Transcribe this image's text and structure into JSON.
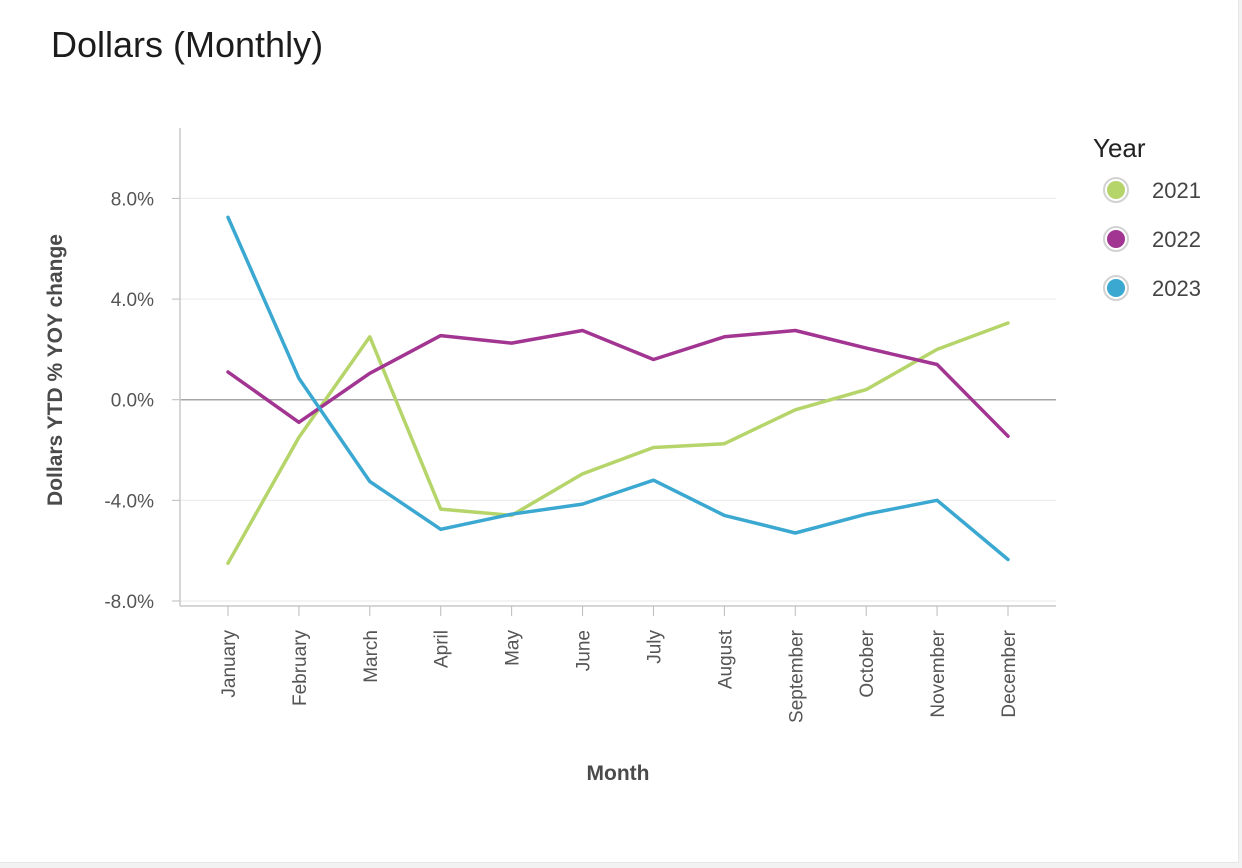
{
  "title": "Dollars (Monthly)",
  "chart_data": {
    "type": "line",
    "title": "Dollars (Monthly)",
    "xlabel": "Month",
    "ylabel": "Dollars YTD % YOY change",
    "categories": [
      "January",
      "February",
      "March",
      "April",
      "May",
      "June",
      "July",
      "August",
      "September",
      "October",
      "November",
      "December"
    ],
    "yticks": [
      8,
      4,
      0,
      -4,
      -8
    ],
    "ytick_labels": [
      "8.0%",
      "4.0%",
      "0.0%",
      "-4.0%",
      "-8.0%"
    ],
    "ylim": [
      -8.2,
      10.8
    ],
    "grid": true,
    "legend": {
      "title": "Year",
      "position": "right"
    },
    "series": [
      {
        "name": "2021",
        "color": "#b5d56a",
        "values": [
          -6.5,
          -1.5,
          2.5,
          -4.35,
          -4.6,
          -2.95,
          -1.9,
          -1.75,
          -0.4,
          0.4,
          2.0,
          3.05
        ]
      },
      {
        "name": "2022",
        "color": "#a23592",
        "values": [
          1.1,
          -0.9,
          1.05,
          2.55,
          2.25,
          2.75,
          1.6,
          2.5,
          2.75,
          2.05,
          1.4,
          -1.45
        ]
      },
      {
        "name": "2023",
        "color": "#3aa8d0",
        "values": [
          7.25,
          0.85,
          -3.25,
          -5.15,
          -4.55,
          -4.15,
          -3.2,
          -4.6,
          -5.3,
          -4.55,
          -4.0,
          -6.35
        ]
      }
    ]
  }
}
